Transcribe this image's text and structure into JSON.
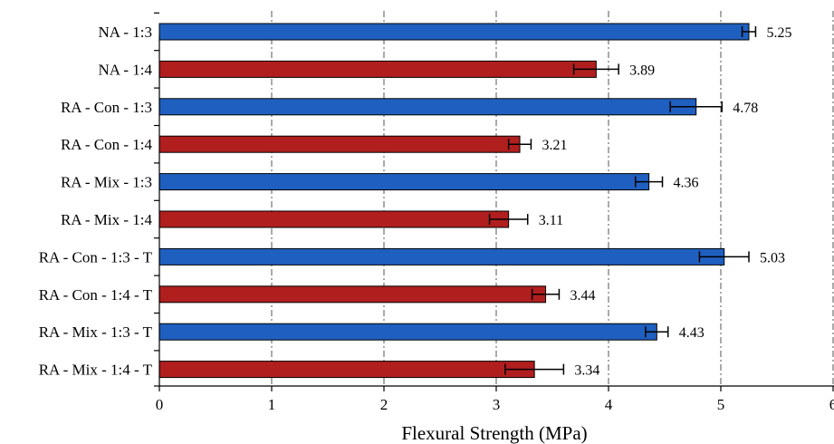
{
  "chart_data": {
    "type": "bar",
    "orientation": "horizontal",
    "xlabel": "Flexural Strength (MPa)",
    "xlim": [
      0,
      6
    ],
    "x_ticks": [
      "0",
      "1",
      "2",
      "3",
      "4",
      "5",
      "6"
    ],
    "grid": "vertical dash-dot",
    "categories": [
      "NA - 1:3",
      "NA - 1:4",
      "RA - Con - 1:3",
      "RA - Con - 1:4",
      "RA - Mix - 1:3",
      "RA - Mix - 1:4",
      "RA - Con - 1:3 - T",
      "RA - Con - 1:4 - T",
      "RA - Mix - 1:3 - T",
      "RA - Mix - 1:4 - T"
    ],
    "values": [
      5.25,
      3.89,
      4.78,
      3.21,
      4.36,
      3.11,
      5.03,
      3.44,
      4.43,
      3.34
    ],
    "value_labels": [
      "5.25",
      "3.89",
      "4.78",
      "3.21",
      "4.36",
      "3.11",
      "5.03",
      "3.44",
      "4.43",
      "3.34"
    ],
    "errors": [
      0.06,
      0.2,
      0.23,
      0.1,
      0.12,
      0.17,
      0.22,
      0.12,
      0.1,
      0.26
    ],
    "bar_colors": [
      "#1f5fbf",
      "#b01e1e",
      "#1f5fbf",
      "#b01e1e",
      "#1f5fbf",
      "#b01e1e",
      "#1f5fbf",
      "#b01e1e",
      "#1f5fbf",
      "#b01e1e"
    ]
  }
}
